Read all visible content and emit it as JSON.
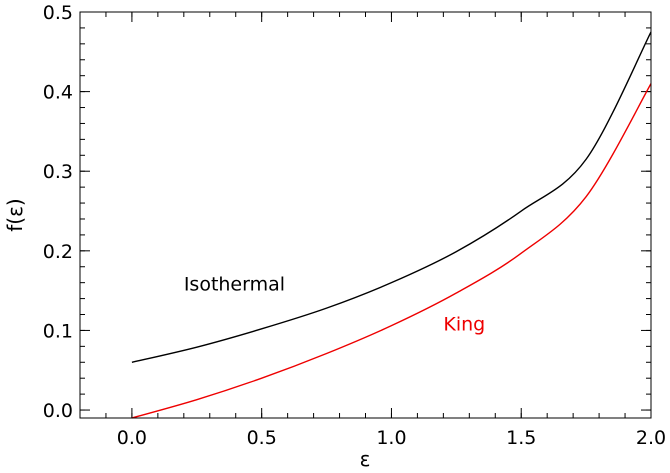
{
  "chart_data": {
    "type": "line",
    "xlabel": "ε",
    "ylabel": "f(ε)",
    "xlim": [
      -0.2,
      2.0
    ],
    "ylim": [
      -0.01,
      0.5
    ],
    "xticks": [
      "0.0",
      "0.5",
      "1.0",
      "1.5",
      "2.0"
    ],
    "yticks": [
      "0.0",
      "0.1",
      "0.2",
      "0.3",
      "0.4",
      "0.5"
    ],
    "grid": false,
    "series": [
      {
        "name": "Isothermal",
        "color": "#000000",
        "x": [
          0.0,
          0.25,
          0.5,
          0.75,
          1.0,
          1.25,
          1.5,
          1.75,
          2.0
        ],
        "y": [
          0.06,
          0.079,
          0.102,
          0.128,
          0.16,
          0.199,
          0.25,
          0.315,
          0.475
        ]
      },
      {
        "name": "King",
        "color": "#ee0000",
        "x": [
          0.0,
          0.25,
          0.5,
          0.75,
          1.0,
          1.25,
          1.5,
          1.75,
          2.0
        ],
        "y": [
          -0.01,
          0.013,
          0.04,
          0.071,
          0.106,
          0.147,
          0.197,
          0.268,
          0.41
        ]
      }
    ],
    "annotations": [
      {
        "text": "Isothermal",
        "color": "#000000",
        "x": 0.2,
        "y": 0.15
      },
      {
        "text": "King",
        "color": "#ee0000",
        "x": 1.2,
        "y": 0.1
      }
    ]
  }
}
